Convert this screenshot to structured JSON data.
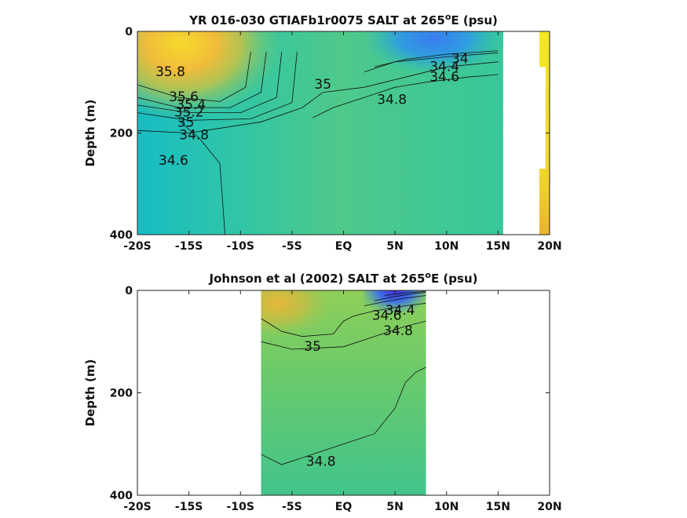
{
  "chart_data": [
    {
      "type": "heatmap",
      "title": "YR 016-030 GTIAFb1r0075 SALT at 265",
      "title_sup": "o",
      "title_suffix": "E (psu)",
      "ylabel": "Depth (m)",
      "xlabel": "",
      "xlim": [
        -20,
        20
      ],
      "ylim": [
        0,
        400
      ],
      "y_reversed": true,
      "x_ticks": [
        -20,
        -15,
        -10,
        -5,
        0,
        5,
        10,
        15,
        20
      ],
      "x_tick_labels": [
        "-20S",
        "-15S",
        "-10S",
        "-5S",
        "EQ",
        "5N",
        "10N",
        "15N",
        "20N"
      ],
      "y_ticks": [
        0,
        200,
        400
      ],
      "y_tick_labels": [
        "0",
        "200",
        "400"
      ],
      "data_extent_x": [
        -20,
        15.5
      ],
      "contour_labels": [
        {
          "text": "35.8",
          "x": -16.8,
          "y": 80
        },
        {
          "text": "35.6",
          "x": -15.5,
          "y": 130
        },
        {
          "text": "35.4",
          "x": -14.8,
          "y": 145
        },
        {
          "text": "35.2",
          "x": -15.0,
          "y": 160
        },
        {
          "text": "35",
          "x": -15.3,
          "y": 180
        },
        {
          "text": "34.8",
          "x": -14.5,
          "y": 205
        },
        {
          "text": "34.6",
          "x": -16.5,
          "y": 255
        },
        {
          "text": "35",
          "x": -2.0,
          "y": 105
        },
        {
          "text": "34.8",
          "x": 4.7,
          "y": 135
        },
        {
          "text": "34.4",
          "x": 9.8,
          "y": 70
        },
        {
          "text": "34.6",
          "x": 9.8,
          "y": 90
        },
        {
          "text": "34",
          "x": 11.3,
          "y": 55
        }
      ]
    },
    {
      "type": "heatmap",
      "title": "Johnson et al (2002) SALT at 265",
      "title_sup": "o",
      "title_suffix": "E (psu)",
      "ylabel": "Depth (m)",
      "xlabel": "",
      "xlim": [
        -20,
        20
      ],
      "ylim": [
        0,
        400
      ],
      "y_reversed": true,
      "x_ticks": [
        -20,
        -15,
        -10,
        -5,
        0,
        5,
        10,
        15,
        20
      ],
      "x_tick_labels": [
        "-20S",
        "-15S",
        "-10S",
        "-5S",
        "EQ",
        "5N",
        "10N",
        "15N",
        "20N"
      ],
      "y_ticks": [
        0,
        200,
        400
      ],
      "y_tick_labels": [
        "0",
        "200",
        "400"
      ],
      "data_extent_x": [
        -8,
        8
      ],
      "contour_labels": [
        {
          "text": "35",
          "x": -3.0,
          "y": 110
        },
        {
          "text": "34.6",
          "x": 4.2,
          "y": 50
        },
        {
          "text": "34.4",
          "x": 5.5,
          "y": 40
        },
        {
          "text": "34.8",
          "x": 5.3,
          "y": 80
        },
        {
          "text": "34.8",
          "x": -2.2,
          "y": 335
        }
      ]
    }
  ]
}
